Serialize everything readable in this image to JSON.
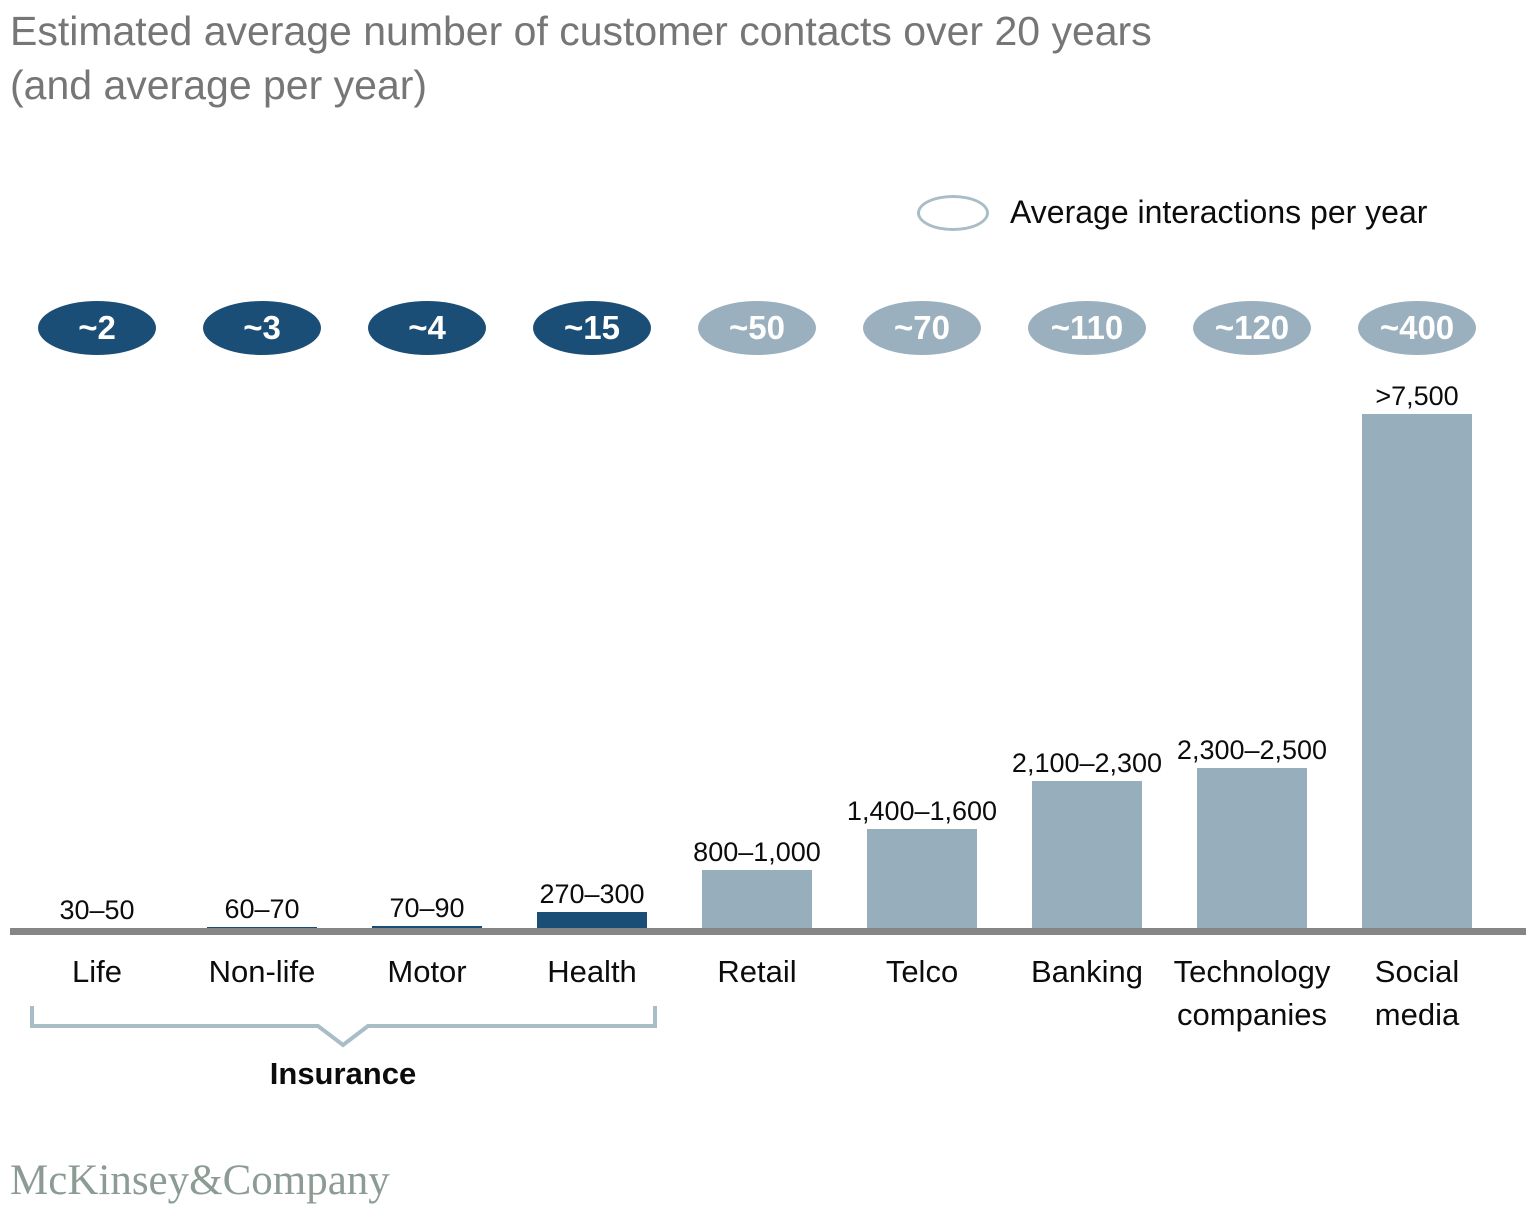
{
  "header": {
    "title_line1": "Estimated average number of customer contacts over 20 years",
    "title_line2": "(and average per year)"
  },
  "chart_data": {
    "type": "bar",
    "title": "Estimated average number of customer contacts over 20 years (and average per year)",
    "legend": "Average interactions per year",
    "categories": [
      "Life",
      "Non-life",
      "Motor",
      "Health",
      "Retail",
      "Telco",
      "Banking",
      "Technology companies",
      "Social media"
    ],
    "bar_value_labels": [
      "30–50",
      "60–70",
      "70–90",
      "270–300",
      "800–1,000",
      "1,400–1,600",
      "2,100–2,300",
      "2,300–2,500",
      ">7,500"
    ],
    "bar_values": [
      40,
      65,
      80,
      285,
      900,
      1500,
      2200,
      2400,
      7600
    ],
    "per_year_labels": [
      "~2",
      "~3",
      "~4",
      "~15",
      "~50",
      "~70",
      "~110",
      "~120",
      "~400"
    ],
    "per_year_values": [
      2,
      3,
      4,
      15,
      50,
      70,
      110,
      120,
      400
    ],
    "bar_color_keys": [
      "dark",
      "dark",
      "dark",
      "dark",
      "light",
      "light",
      "light",
      "light",
      "light"
    ],
    "colors": {
      "dark": "#1b4e77",
      "light": "#9bb0be",
      "bar_light": "#97aebd",
      "axis": "#868686",
      "bracket": "#a9bdc7",
      "title_text": "#767676",
      "logo_text": "#8c9b93"
    },
    "group": {
      "label": "Insurance",
      "members": [
        "Life",
        "Non-life",
        "Motor",
        "Health"
      ]
    },
    "ylim": [
      0,
      8000
    ],
    "grid": false,
    "legend_position": "top-right"
  },
  "footer": {
    "logo_text": "McKinsey&Company"
  }
}
